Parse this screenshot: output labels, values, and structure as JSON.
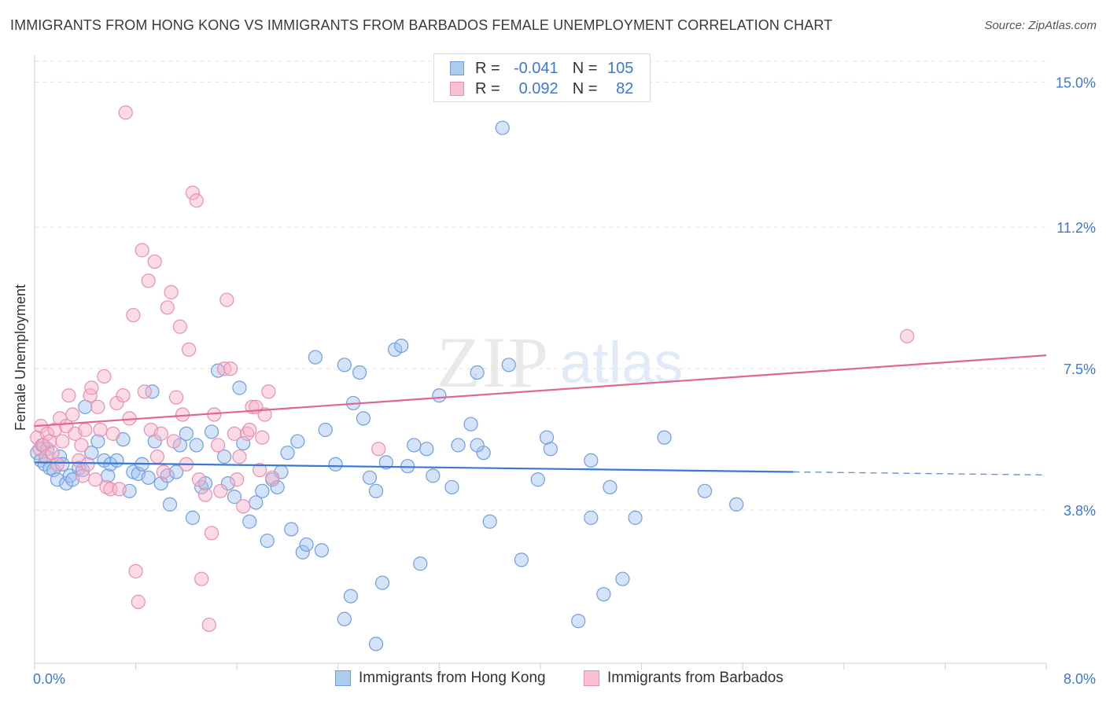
{
  "title": "IMMIGRANTS FROM HONG KONG VS IMMIGRANTS FROM BARBADOS FEMALE UNEMPLOYMENT CORRELATION CHART",
  "source": "Source: ZipAtlas.com",
  "watermark": {
    "zip": "ZIP",
    "atlas": "atlas"
  },
  "legend": {
    "r_label": "R =",
    "n_label": "N =",
    "rows": [
      {
        "r": "-0.041",
        "n": "105",
        "fill": "#aecbf0",
        "stroke": "#6f9fe0"
      },
      {
        "r": "0.092",
        "n": "82",
        "fill": "#f8c0d2",
        "stroke": "#ea8fb0"
      }
    ]
  },
  "bottom_legend": [
    {
      "label": "Immigrants from Hong Kong",
      "fill": "#aecbf0",
      "stroke": "#6f9fe0"
    },
    {
      "label": "Immigrants from Barbados",
      "fill": "#f8c0d2",
      "stroke": "#ea8fb0"
    }
  ],
  "chart_data": {
    "type": "scatter",
    "title": "IMMIGRANTS FROM HONG KONG VS IMMIGRANTS FROM BARBADOS FEMALE UNEMPLOYMENT CORRELATION CHART",
    "xlabel": "",
    "ylabel": "Female Unemployment",
    "xlim": [
      0,
      8
    ],
    "ylim": [
      0,
      15.5
    ],
    "x_tick_labels": [
      {
        "value": 0,
        "label": "0.0%"
      },
      {
        "value": 8,
        "label": "8.0%"
      }
    ],
    "y_tick_labels": [
      {
        "value": 3.8,
        "label": "3.8%"
      },
      {
        "value": 7.5,
        "label": "7.5%"
      },
      {
        "value": 11.2,
        "label": "11.2%"
      },
      {
        "value": 15.0,
        "label": "15.0%"
      }
    ],
    "x_minor_ticks": [
      0,
      0.8,
      1.6,
      2.4,
      3.2,
      4.0,
      4.8,
      5.6,
      6.4,
      7.2,
      8.0
    ],
    "grid": true,
    "legend_position": "top-center",
    "series": [
      {
        "name": "Immigrants from Hong Kong",
        "color": "#6f9fe0",
        "line_color": "#3a78d4",
        "trend": {
          "x0": 0,
          "y0": 5.05,
          "x1": 6.0,
          "y1": 4.8,
          "dash_to": 8.0,
          "dash_y": 4.72
        },
        "points": [
          [
            0.02,
            5.3
          ],
          [
            0.05,
            5.1
          ],
          [
            0.06,
            5.5
          ],
          [
            0.08,
            5.0
          ],
          [
            0.1,
            5.4
          ],
          [
            0.12,
            4.9
          ],
          [
            0.15,
            4.85
          ],
          [
            0.18,
            4.6
          ],
          [
            0.2,
            5.2
          ],
          [
            0.22,
            5.0
          ],
          [
            0.25,
            4.5
          ],
          [
            0.28,
            4.7
          ],
          [
            0.3,
            4.6
          ],
          [
            0.35,
            4.9
          ],
          [
            0.38,
            4.85
          ],
          [
            0.4,
            6.5
          ],
          [
            0.45,
            5.3
          ],
          [
            0.5,
            5.6
          ],
          [
            0.55,
            5.1
          ],
          [
            0.58,
            4.7
          ],
          [
            0.6,
            5.0
          ],
          [
            0.65,
            5.1
          ],
          [
            0.7,
            5.65
          ],
          [
            0.75,
            4.3
          ],
          [
            0.78,
            4.8
          ],
          [
            0.82,
            4.75
          ],
          [
            0.85,
            5.0
          ],
          [
            0.9,
            4.65
          ],
          [
            0.93,
            6.9
          ],
          [
            0.95,
            5.6
          ],
          [
            1.0,
            4.5
          ],
          [
            1.05,
            4.7
          ],
          [
            1.07,
            3.95
          ],
          [
            1.12,
            4.8
          ],
          [
            1.15,
            5.5
          ],
          [
            1.2,
            5.8
          ],
          [
            1.25,
            3.6
          ],
          [
            1.28,
            5.5
          ],
          [
            1.32,
            4.4
          ],
          [
            1.35,
            4.5
          ],
          [
            1.4,
            5.85
          ],
          [
            1.45,
            7.45
          ],
          [
            1.5,
            5.2
          ],
          [
            1.53,
            4.5
          ],
          [
            1.58,
            4.15
          ],
          [
            1.62,
            7.0
          ],
          [
            1.65,
            5.55
          ],
          [
            1.7,
            3.5
          ],
          [
            1.75,
            4.0
          ],
          [
            1.8,
            4.3
          ],
          [
            1.84,
            3.0
          ],
          [
            1.88,
            4.6
          ],
          [
            1.92,
            4.4
          ],
          [
            1.95,
            4.8
          ],
          [
            2.0,
            5.3
          ],
          [
            2.03,
            3.3
          ],
          [
            2.08,
            5.6
          ],
          [
            2.12,
            2.7
          ],
          [
            2.15,
            2.9
          ],
          [
            2.22,
            7.8
          ],
          [
            2.27,
            2.75
          ],
          [
            2.3,
            5.9
          ],
          [
            2.38,
            5.0
          ],
          [
            2.45,
            7.6
          ],
          [
            2.5,
            1.55
          ],
          [
            2.52,
            6.6
          ],
          [
            2.57,
            7.4
          ],
          [
            2.6,
            6.2
          ],
          [
            2.65,
            4.65
          ],
          [
            2.7,
            4.3
          ],
          [
            2.75,
            1.9
          ],
          [
            2.78,
            5.05
          ],
          [
            2.85,
            8.0
          ],
          [
            2.9,
            8.1
          ],
          [
            2.95,
            4.95
          ],
          [
            3.0,
            5.5
          ],
          [
            3.05,
            2.4
          ],
          [
            3.1,
            5.4
          ],
          [
            3.15,
            4.7
          ],
          [
            3.2,
            6.8
          ],
          [
            3.3,
            4.4
          ],
          [
            3.35,
            5.5
          ],
          [
            3.45,
            6.05
          ],
          [
            3.5,
            7.4
          ],
          [
            3.55,
            5.3
          ],
          [
            3.6,
            3.5
          ],
          [
            3.7,
            13.8
          ],
          [
            3.75,
            7.6
          ],
          [
            3.85,
            2.5
          ],
          [
            3.98,
            4.6
          ],
          [
            4.05,
            5.7
          ],
          [
            4.08,
            5.4
          ],
          [
            4.4,
            5.1
          ],
          [
            4.4,
            3.6
          ],
          [
            4.5,
            1.6
          ],
          [
            4.55,
            4.4
          ],
          [
            4.65,
            2.0
          ],
          [
            4.75,
            3.6
          ],
          [
            4.98,
            5.7
          ],
          [
            5.3,
            4.3
          ],
          [
            5.55,
            3.95
          ],
          [
            2.7,
            0.3
          ],
          [
            3.5,
            5.5
          ],
          [
            4.3,
            0.9
          ],
          [
            2.45,
            0.95
          ]
        ]
      },
      {
        "name": "Immigrants from Barbados",
        "color": "#ea8fb0",
        "line_color": "#e0678f",
        "trend": {
          "x0": 0,
          "y0": 6.0,
          "x1": 8.0,
          "y1": 7.85
        },
        "points": [
          [
            0.02,
            5.7
          ],
          [
            0.04,
            5.4
          ],
          [
            0.05,
            6.0
          ],
          [
            0.07,
            5.5
          ],
          [
            0.09,
            5.2
          ],
          [
            0.1,
            5.8
          ],
          [
            0.12,
            5.6
          ],
          [
            0.14,
            5.3
          ],
          [
            0.16,
            5.9
          ],
          [
            0.18,
            5.0
          ],
          [
            0.2,
            6.2
          ],
          [
            0.22,
            5.6
          ],
          [
            0.25,
            6.0
          ],
          [
            0.27,
            6.8
          ],
          [
            0.3,
            6.3
          ],
          [
            0.32,
            5.8
          ],
          [
            0.35,
            5.1
          ],
          [
            0.37,
            5.5
          ],
          [
            0.38,
            4.7
          ],
          [
            0.4,
            5.9
          ],
          [
            0.42,
            5.0
          ],
          [
            0.44,
            6.8
          ],
          [
            0.45,
            7.0
          ],
          [
            0.48,
            4.6
          ],
          [
            0.5,
            6.5
          ],
          [
            0.52,
            5.9
          ],
          [
            0.55,
            7.3
          ],
          [
            0.57,
            4.4
          ],
          [
            0.6,
            4.35
          ],
          [
            0.62,
            5.8
          ],
          [
            0.65,
            6.6
          ],
          [
            0.67,
            4.35
          ],
          [
            0.7,
            6.8
          ],
          [
            0.72,
            14.2
          ],
          [
            0.75,
            6.2
          ],
          [
            0.78,
            8.9
          ],
          [
            0.8,
            2.2
          ],
          [
            0.82,
            1.4
          ],
          [
            0.85,
            10.6
          ],
          [
            0.87,
            6.9
          ],
          [
            0.9,
            9.8
          ],
          [
            0.92,
            5.9
          ],
          [
            0.95,
            10.3
          ],
          [
            0.97,
            5.2
          ],
          [
            1.0,
            5.8
          ],
          [
            1.02,
            4.8
          ],
          [
            1.05,
            9.1
          ],
          [
            1.08,
            9.5
          ],
          [
            1.1,
            5.6
          ],
          [
            1.12,
            6.75
          ],
          [
            1.15,
            8.6
          ],
          [
            1.17,
            6.3
          ],
          [
            1.2,
            5.0
          ],
          [
            1.22,
            8.0
          ],
          [
            1.25,
            12.1
          ],
          [
            1.28,
            11.9
          ],
          [
            1.3,
            4.6
          ],
          [
            1.32,
            2.0
          ],
          [
            1.35,
            4.2
          ],
          [
            1.38,
            0.8
          ],
          [
            1.4,
            3.2
          ],
          [
            1.42,
            6.3
          ],
          [
            1.45,
            5.5
          ],
          [
            1.47,
            4.3
          ],
          [
            1.5,
            7.5
          ],
          [
            1.52,
            9.3
          ],
          [
            1.55,
            7.5
          ],
          [
            1.58,
            5.8
          ],
          [
            1.6,
            4.6
          ],
          [
            1.62,
            5.2
          ],
          [
            1.65,
            3.9
          ],
          [
            1.68,
            5.8
          ],
          [
            1.7,
            5.9
          ],
          [
            1.72,
            6.5
          ],
          [
            1.75,
            6.5
          ],
          [
            1.78,
            4.85
          ],
          [
            1.8,
            5.7
          ],
          [
            1.82,
            6.3
          ],
          [
            1.85,
            6.9
          ],
          [
            1.88,
            4.65
          ],
          [
            2.72,
            5.4
          ],
          [
            6.9,
            8.35
          ]
        ]
      }
    ]
  }
}
